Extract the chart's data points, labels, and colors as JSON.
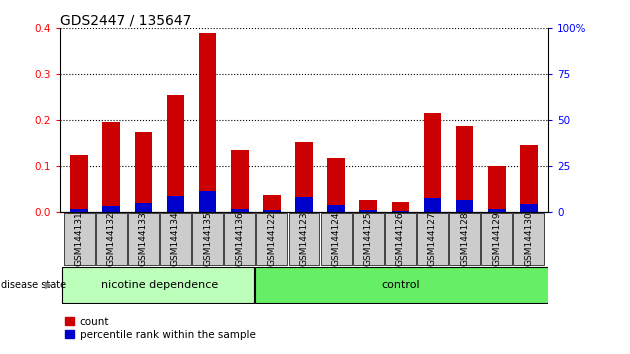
{
  "title": "GDS2447 / 135647",
  "categories": [
    "GSM144131",
    "GSM144132",
    "GSM144133",
    "GSM144134",
    "GSM144135",
    "GSM144136",
    "GSM144122",
    "GSM144123",
    "GSM144124",
    "GSM144125",
    "GSM144126",
    "GSM144127",
    "GSM144128",
    "GSM144129",
    "GSM144130"
  ],
  "count_values": [
    0.125,
    0.197,
    0.175,
    0.255,
    0.39,
    0.135,
    0.038,
    0.152,
    0.118,
    0.028,
    0.022,
    0.215,
    0.188,
    0.1,
    0.147
  ],
  "percentile_values": [
    0.008,
    0.014,
    0.02,
    0.036,
    0.046,
    0.008,
    0.005,
    0.034,
    0.016,
    0.006,
    0.004,
    0.032,
    0.026,
    0.008,
    0.018
  ],
  "bar_color": "#cc0000",
  "percentile_color": "#0000cc",
  "ylim_min": 0,
  "ylim_max": 0.4,
  "y2lim_min": 0,
  "y2lim_max": 100,
  "yticks": [
    0,
    0.1,
    0.2,
    0.3,
    0.4
  ],
  "y2ticks": [
    0,
    25,
    50,
    75,
    100
  ],
  "y2tick_labels": [
    "0",
    "25",
    "50",
    "75",
    "100%"
  ],
  "group1_label": "nicotine dependence",
  "group2_label": "control",
  "group1_count": 6,
  "group2_count": 9,
  "disease_state_label": "disease state",
  "legend_count": "count",
  "legend_percentile": "percentile rank within the sample",
  "group1_color": "#bbffbb",
  "group2_color": "#66ee66",
  "tick_bg_color": "#cccccc",
  "bar_width": 0.55,
  "title_fontsize": 10,
  "tick_fontsize": 6.5,
  "axis_label_fontsize": 7.5,
  "group_label_fontsize": 8,
  "legend_fontsize": 7.5
}
